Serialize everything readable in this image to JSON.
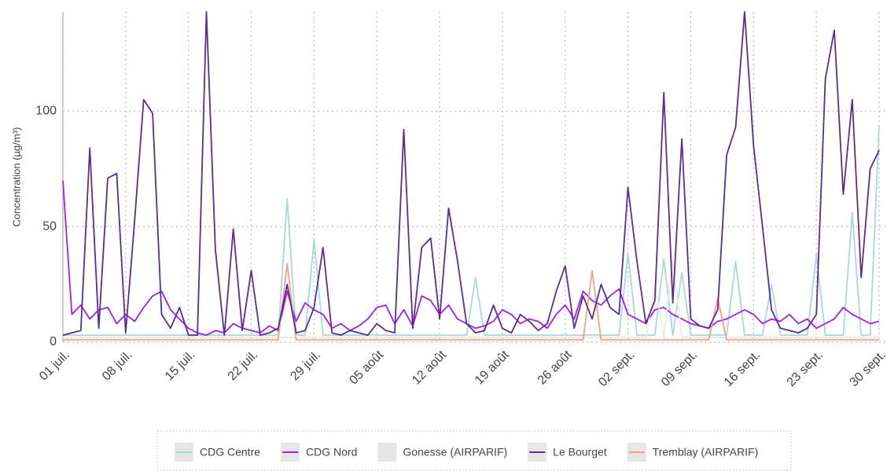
{
  "chart_data": {
    "type": "line",
    "y_label": "Concentration (µg/m³)",
    "categories": [
      "01 juil.",
      null,
      null,
      null,
      null,
      null,
      null,
      "08 juil.",
      null,
      null,
      null,
      null,
      null,
      null,
      "15 juil.",
      null,
      null,
      null,
      null,
      null,
      null,
      "22 juil.",
      null,
      null,
      null,
      null,
      null,
      null,
      "29 juil.",
      null,
      null,
      null,
      null,
      null,
      null,
      "05 août",
      null,
      null,
      null,
      null,
      null,
      null,
      "12 août",
      null,
      null,
      null,
      null,
      null,
      null,
      "19 août",
      null,
      null,
      null,
      null,
      null,
      null,
      "26 août",
      null,
      null,
      null,
      null,
      null,
      null,
      "02 sept.",
      null,
      null,
      null,
      null,
      null,
      null,
      "09 sept.",
      null,
      null,
      null,
      null,
      null,
      null,
      "16 sept.",
      null,
      null,
      null,
      null,
      null,
      null,
      "23 sept.",
      null,
      null,
      null,
      null,
      null,
      null,
      "30 sept."
    ],
    "ylim": [
      0,
      143
    ],
    "yticks": [
      0,
      50,
      100
    ],
    "grid": true,
    "series": [
      {
        "name": "CDG Centre",
        "color": "#a8d8dc",
        "values": [
          3,
          3,
          3,
          3,
          3,
          3,
          3,
          3,
          3,
          3,
          3,
          3,
          3,
          3,
          3,
          3,
          3,
          3,
          3,
          3,
          3,
          3,
          3,
          3,
          3,
          62,
          3,
          3,
          44,
          3,
          3,
          3,
          3,
          3,
          3,
          3,
          3,
          3,
          3,
          3,
          3,
          3,
          3,
          3,
          3,
          3,
          28,
          3,
          3,
          3,
          3,
          3,
          3,
          3,
          3,
          3,
          3,
          3,
          3,
          3,
          3,
          3,
          3,
          38,
          3,
          3,
          3,
          36,
          3,
          30,
          3,
          3,
          3,
          3,
          3,
          35,
          3,
          3,
          3,
          25,
          3,
          3,
          3,
          3,
          38,
          3,
          3,
          3,
          56,
          3,
          3,
          94
        ]
      },
      {
        "name": "CDG Nord",
        "color": "#a020f0",
        "values": [
          70,
          12,
          16,
          10,
          14,
          15,
          8,
          12,
          9,
          15,
          20,
          22,
          14,
          10,
          6,
          4,
          3,
          5,
          4,
          8,
          6,
          5,
          4,
          7,
          5,
          22,
          9,
          17,
          14,
          12,
          6,
          8,
          5,
          7,
          10,
          15,
          16,
          8,
          14,
          7,
          20,
          18,
          12,
          16,
          10,
          8,
          6,
          7,
          9,
          14,
          12,
          8,
          10,
          9,
          6,
          12,
          16,
          10,
          22,
          18,
          16,
          20,
          23,
          12,
          10,
          8,
          14,
          15,
          12,
          10,
          8,
          7,
          6,
          9,
          10,
          12,
          14,
          12,
          8,
          10,
          9,
          12,
          8,
          10,
          6,
          8,
          10,
          15,
          12,
          10,
          8,
          9
        ]
      },
      {
        "name": "Gonesse (AIRPARIF)",
        "color": "#e6edd6",
        "values": [
          2,
          2,
          2,
          2,
          2,
          2,
          2,
          2,
          2,
          2,
          2,
          2,
          2,
          2,
          2,
          2,
          2,
          2,
          2,
          2,
          2,
          2,
          2,
          2,
          2,
          2,
          2,
          2,
          2,
          2,
          2,
          2,
          2,
          2,
          2,
          2,
          2,
          2,
          2,
          2,
          2,
          2,
          2,
          2,
          2,
          2,
          2,
          2,
          2,
          2,
          2,
          2,
          2,
          2,
          2,
          2,
          2,
          2,
          2,
          2,
          2,
          2,
          2,
          2,
          2,
          2,
          25,
          2,
          36,
          2,
          2,
          2,
          2,
          2,
          2,
          2,
          2,
          2,
          2,
          2,
          2,
          2,
          2,
          2,
          2,
          2,
          2,
          2,
          2,
          2,
          2,
          2
        ]
      },
      {
        "name": "Tremblay (AIRPARIF)",
        "color": "#f4a08a",
        "values": [
          1,
          1,
          1,
          1,
          1,
          1,
          1,
          1,
          1,
          1,
          1,
          1,
          1,
          1,
          1,
          1,
          1,
          1,
          1,
          1,
          1,
          1,
          1,
          1,
          1,
          34,
          1,
          1,
          1,
          1,
          1,
          1,
          1,
          1,
          1,
          1,
          1,
          1,
          1,
          1,
          1,
          1,
          1,
          1,
          1,
          1,
          1,
          1,
          1,
          1,
          1,
          1,
          1,
          1,
          1,
          1,
          1,
          1,
          1,
          31,
          1,
          1,
          1,
          1,
          1,
          1,
          1,
          1,
          1,
          1,
          1,
          1,
          1,
          19,
          1,
          1,
          1,
          1,
          1,
          1,
          1,
          1,
          1,
          1,
          1,
          1,
          1,
          1,
          1,
          1,
          1,
          1
        ]
      },
      {
        "name": "Le Bourget",
        "color": "#5b2d91",
        "values": [
          3,
          4,
          5,
          84,
          6,
          71,
          73,
          4,
          53,
          105,
          99,
          12,
          6,
          15,
          3,
          3,
          143,
          40,
          3,
          49,
          5,
          31,
          3,
          4,
          6,
          25,
          4,
          5,
          15,
          41,
          4,
          3,
          5,
          4,
          3,
          8,
          5,
          4,
          92,
          6,
          41,
          45,
          10,
          58,
          35,
          8,
          4,
          5,
          16,
          6,
          4,
          12,
          9,
          5,
          8,
          22,
          33,
          6,
          20,
          10,
          25,
          15,
          12,
          67,
          35,
          8,
          18,
          108,
          17,
          88,
          10,
          7,
          6,
          14,
          81,
          93,
          143,
          85,
          50,
          14,
          6,
          5,
          4,
          6,
          12,
          114,
          135,
          64,
          105,
          28,
          75,
          83
        ]
      }
    ]
  }
}
